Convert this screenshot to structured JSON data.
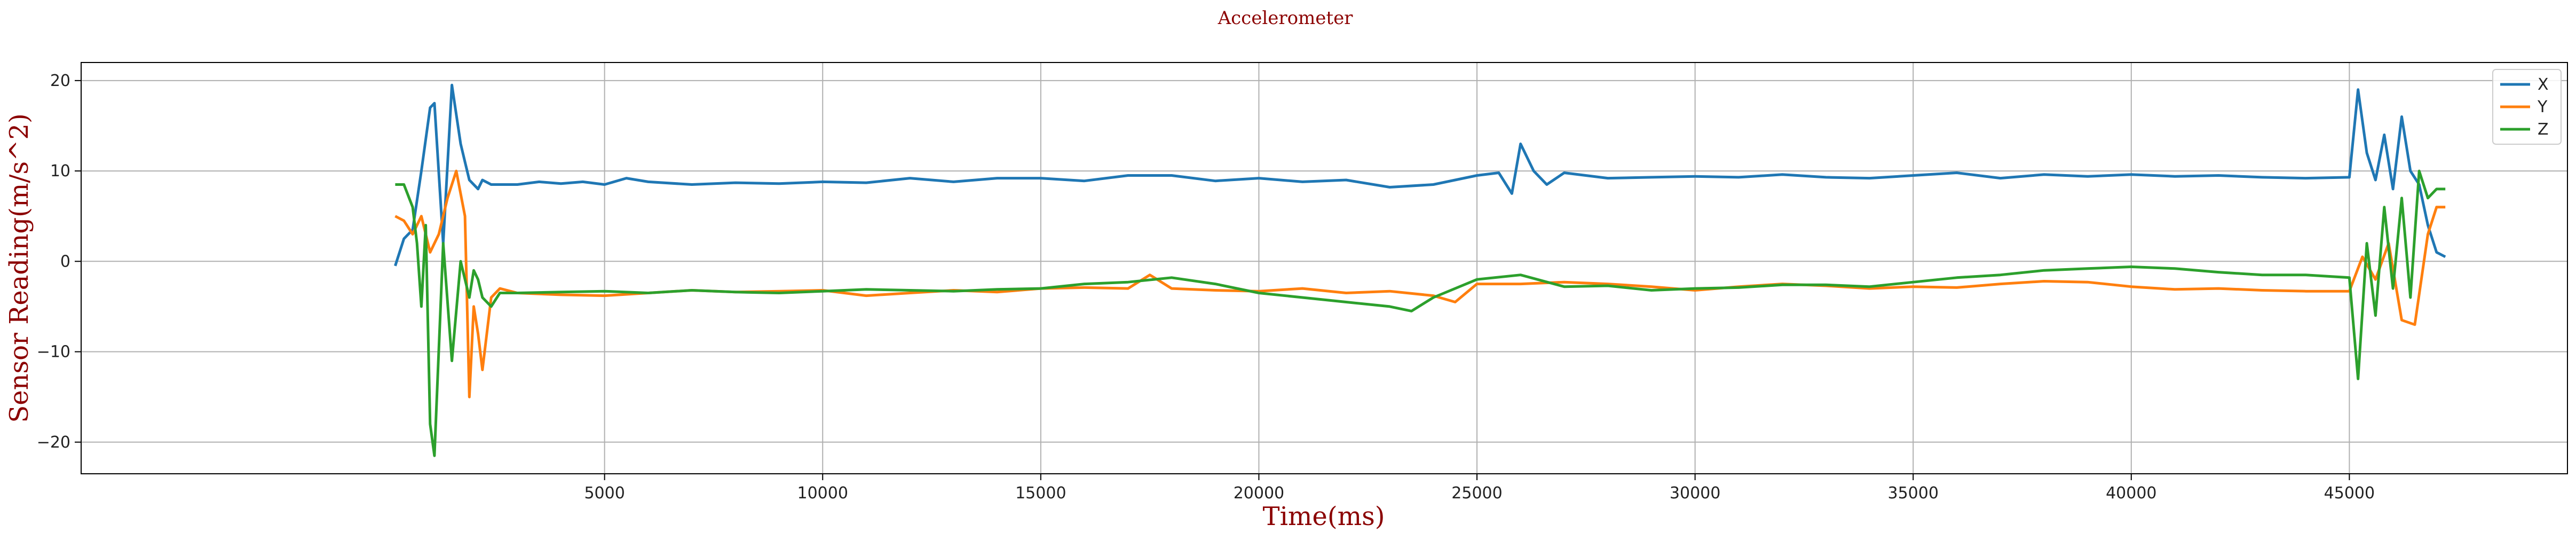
{
  "chart_data": {
    "type": "line",
    "title": "Accelerometer",
    "xlabel": "Time(ms)",
    "ylabel": "Sensor Reading(m/s^2)",
    "xlim": [
      -7000,
      50000
    ],
    "ylim": [
      -23.5,
      22
    ],
    "xticks": [
      5000,
      10000,
      15000,
      20000,
      25000,
      30000,
      35000,
      40000,
      45000
    ],
    "yticks": [
      -20,
      -10,
      0,
      10,
      20
    ],
    "grid": true,
    "legend_position": "top-right",
    "series": [
      {
        "name": "X",
        "color": "#1f77b4",
        "x": [
          200,
          400,
          600,
          800,
          1000,
          1100,
          1300,
          1500,
          1700,
          1800,
          1900,
          2000,
          2100,
          2200,
          2400,
          2600,
          3000,
          3500,
          4000,
          4500,
          5000,
          5500,
          6000,
          7000,
          8000,
          9000,
          10000,
          11000,
          12000,
          13000,
          14000,
          15000,
          16000,
          17000,
          18000,
          19000,
          20000,
          21000,
          22000,
          23000,
          24000,
          25000,
          25500,
          25800,
          26000,
          26300,
          26600,
          27000,
          28000,
          29000,
          30000,
          31000,
          32000,
          33000,
          34000,
          35000,
          36000,
          37000,
          38000,
          39000,
          40000,
          41000,
          42000,
          43000,
          44000,
          45000,
          45200,
          45400,
          45600,
          45800,
          46000,
          46200,
          46400,
          46600,
          46800,
          47000,
          47200
        ],
        "y": [
          -0.5,
          2.5,
          3.5,
          10,
          17,
          17.5,
          2,
          19.5,
          13,
          11,
          9,
          8.5,
          8,
          9,
          8.5,
          8.5,
          8.5,
          8.8,
          8.6,
          8.8,
          8.5,
          9.2,
          8.8,
          8.5,
          8.7,
          8.6,
          8.8,
          8.7,
          9.2,
          8.8,
          9.2,
          9.2,
          8.9,
          9.5,
          9.5,
          8.9,
          9.2,
          8.8,
          9,
          8.2,
          8.5,
          9.5,
          9.8,
          7.5,
          13,
          10,
          8.5,
          9.8,
          9.2,
          9.3,
          9.4,
          9.3,
          9.6,
          9.3,
          9.2,
          9.5,
          9.8,
          9.2,
          9.6,
          9.4,
          9.6,
          9.4,
          9.5,
          9.3,
          9.2,
          9.3,
          19,
          12,
          9,
          14,
          8,
          16,
          10,
          8.5,
          4,
          1,
          0.5
        ]
      },
      {
        "name": "Y",
        "color": "#ff7f0e",
        "x": [
          200,
          400,
          600,
          800,
          1000,
          1200,
          1400,
          1600,
          1800,
          1900,
          2000,
          2100,
          2200,
          2400,
          2600,
          3000,
          4000,
          5000,
          6000,
          7000,
          8000,
          9000,
          10000,
          11000,
          12000,
          13000,
          14000,
          15000,
          16000,
          17000,
          17500,
          18000,
          19000,
          20000,
          21000,
          22000,
          23000,
          24000,
          24500,
          25000,
          26000,
          27000,
          28000,
          29000,
          30000,
          31000,
          32000,
          33000,
          34000,
          35000,
          36000,
          37000,
          38000,
          39000,
          40000,
          41000,
          42000,
          43000,
          44000,
          45000,
          45300,
          45600,
          45900,
          46200,
          46500,
          46800,
          47000,
          47200
        ],
        "y": [
          5,
          4.5,
          3,
          5,
          1,
          3,
          7,
          10,
          5,
          -15,
          -5,
          -8,
          -12,
          -4,
          -3,
          -3.5,
          -3.7,
          -3.8,
          -3.5,
          -3.2,
          -3.4,
          -3.3,
          -3.2,
          -3.8,
          -3.5,
          -3.2,
          -3.4,
          -3,
          -2.9,
          -3,
          -1.5,
          -3,
          -3.2,
          -3.3,
          -3,
          -3.5,
          -3.3,
          -3.8,
          -4.5,
          -2.5,
          -2.5,
          -2.3,
          -2.5,
          -2.8,
          -3.2,
          -2.8,
          -2.5,
          -2.7,
          -3,
          -2.8,
          -2.9,
          -2.5,
          -2.2,
          -2.3,
          -2.8,
          -3.1,
          -3,
          -3.2,
          -3.3,
          -3.3,
          0.5,
          -2,
          2,
          -6.5,
          -7,
          3,
          6,
          6
        ]
      },
      {
        "name": "Z",
        "color": "#2ca02c",
        "x": [
          200,
          400,
          600,
          700,
          800,
          900,
          1000,
          1100,
          1300,
          1500,
          1700,
          1900,
          2000,
          2100,
          2200,
          2400,
          2600,
          3000,
          4000,
          5000,
          6000,
          7000,
          8000,
          9000,
          10000,
          11000,
          12000,
          13000,
          14000,
          15000,
          16000,
          17000,
          18000,
          19000,
          20000,
          21000,
          22000,
          23000,
          23500,
          24000,
          25000,
          26000,
          27000,
          28000,
          29000,
          30000,
          31000,
          32000,
          33000,
          34000,
          35000,
          36000,
          37000,
          38000,
          39000,
          40000,
          41000,
          42000,
          43000,
          44000,
          45000,
          45200,
          45400,
          45600,
          45800,
          46000,
          46200,
          46400,
          46600,
          46800,
          47000,
          47200
        ],
        "y": [
          8.5,
          8.5,
          6,
          2,
          -5,
          4,
          -18,
          -21.5,
          2,
          -11,
          0,
          -4,
          -1,
          -2,
          -4,
          -5,
          -3.5,
          -3.5,
          -3.4,
          -3.3,
          -3.5,
          -3.2,
          -3.4,
          -3.5,
          -3.3,
          -3.1,
          -3.2,
          -3.3,
          -3.1,
          -3,
          -2.5,
          -2.3,
          -1.8,
          -2.5,
          -3.5,
          -4,
          -4.5,
          -5,
          -5.5,
          -4,
          -2,
          -1.5,
          -2.8,
          -2.7,
          -3.2,
          -3,
          -2.9,
          -2.6,
          -2.6,
          -2.8,
          -2.3,
          -1.8,
          -1.5,
          -1,
          -0.8,
          -0.6,
          -0.8,
          -1.2,
          -1.5,
          -1.5,
          -1.8,
          -13,
          2,
          -6,
          6,
          -3,
          7,
          -4,
          10,
          7,
          8,
          8
        ]
      }
    ]
  }
}
